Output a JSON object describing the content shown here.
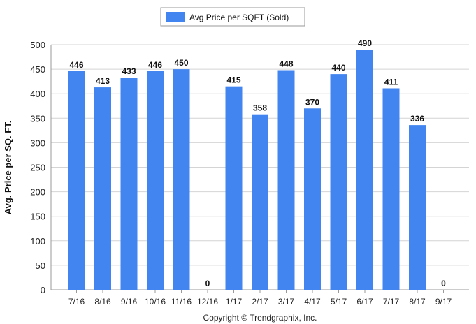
{
  "chart_data": {
    "type": "bar",
    "categories": [
      "7/16",
      "8/16",
      "9/16",
      "10/16",
      "11/16",
      "12/16",
      "1/17",
      "2/17",
      "3/17",
      "4/17",
      "5/17",
      "6/17",
      "7/17",
      "8/17",
      "9/17"
    ],
    "series": [
      {
        "name": "Avg Price per SQFT (Sold)",
        "values": [
          446,
          413,
          433,
          446,
          450,
          0,
          415,
          358,
          448,
          370,
          440,
          490,
          411,
          336,
          0
        ]
      }
    ],
    "ylabel": "Avg. Price per SQ. FT.",
    "xlabel": "",
    "ylim": [
      0,
      500
    ],
    "yticks": [
      0,
      50,
      100,
      150,
      200,
      250,
      300,
      350,
      400,
      450,
      500
    ],
    "grid": true,
    "legend_position": "top-center",
    "data_labels": true,
    "bar_color": "#4385f0"
  },
  "footer": {
    "copyright": "Copyright © Trendgraphix, Inc."
  }
}
